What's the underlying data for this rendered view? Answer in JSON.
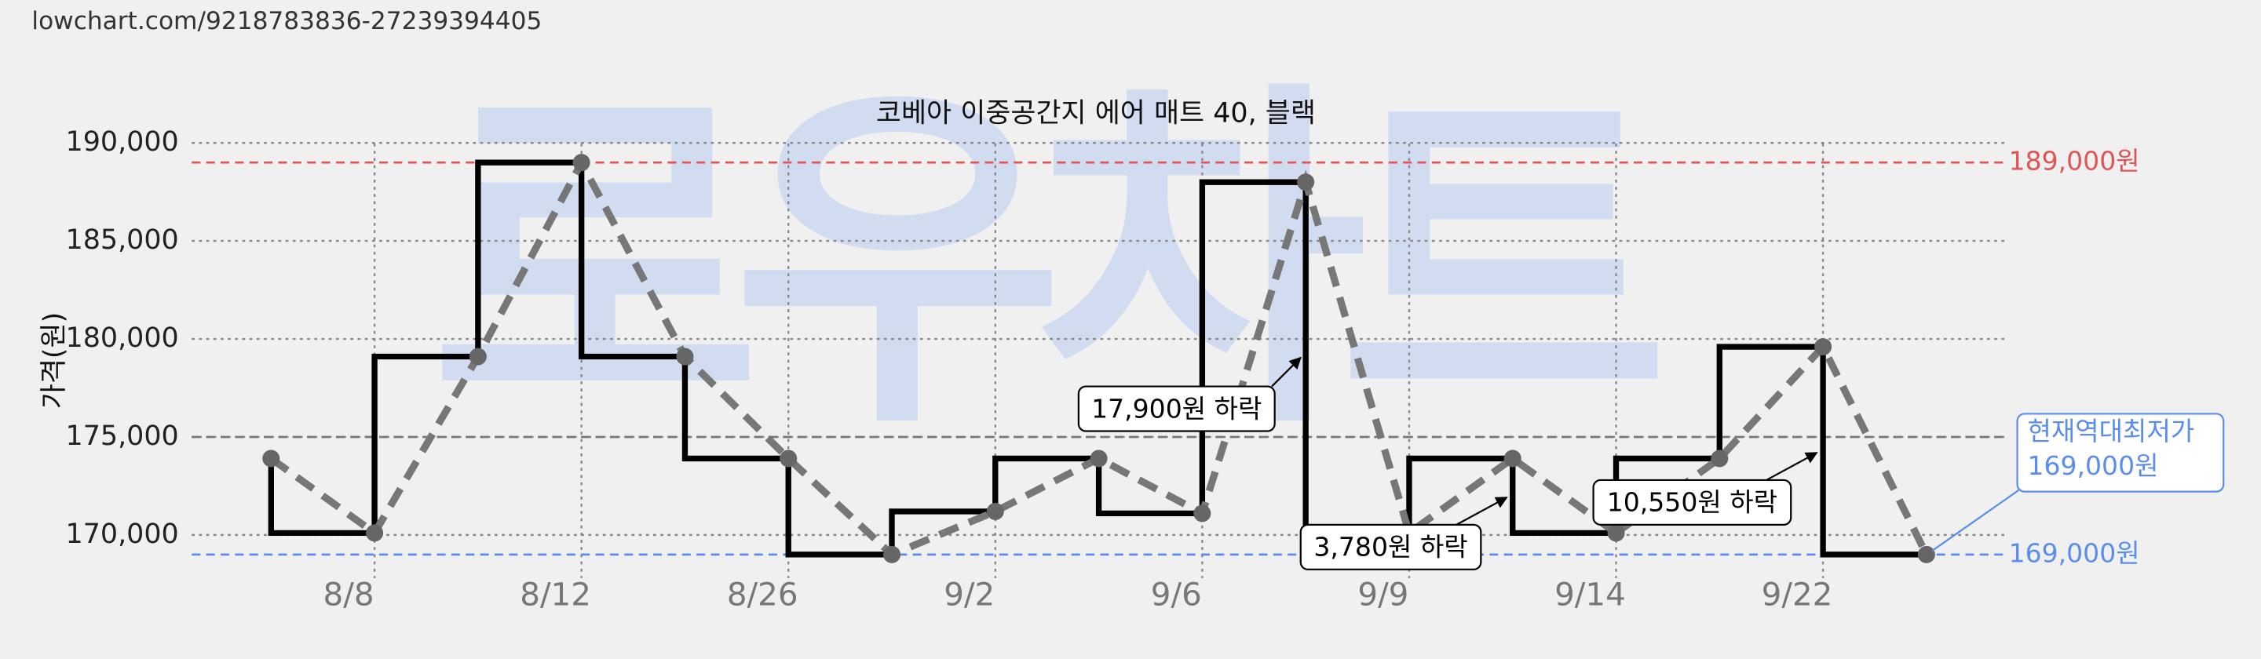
{
  "url": "lowchart.com/9218783836-27239394405",
  "watermark": "로우차트",
  "chart_data": {
    "type": "line",
    "title": "코베아 이중공간지 에어 매트 40, 블랙",
    "y_label": "가격(원)",
    "categories": [
      null,
      "8/8",
      null,
      "8/12",
      null,
      "8/26",
      null,
      "9/2",
      null,
      "9/6",
      null,
      "9/9",
      null,
      "9/14",
      null,
      "9/22",
      null
    ],
    "series": [
      {
        "color": "#777777",
        "values": [
          173900,
          170100,
          179100,
          189000,
          179100,
          173900,
          169000,
          171200,
          173900,
          171100,
          188000,
          170100,
          173900,
          170100,
          173900,
          179600,
          169000
        ]
      }
    ],
    "ylim": [
      167800,
      190700
    ],
    "yticks": [
      {
        "value": 170000,
        "label": "170,000"
      },
      {
        "value": 175000,
        "label": "175,000"
      },
      {
        "value": 180000,
        "label": "180,000"
      },
      {
        "value": 185000,
        "label": "185,000"
      },
      {
        "value": 190000,
        "label": "190,000"
      }
    ],
    "grid": true,
    "reference_lines": [
      {
        "value": 189000,
        "label": "189,000원",
        "color": "#e05555"
      },
      {
        "value": 175000,
        "color": "#777777"
      },
      {
        "value": 169000,
        "label": "169,000원",
        "color": "#5b8def"
      }
    ],
    "annotations": [
      {
        "text": "17,900원 하락"
      },
      {
        "text": "3,780원 하락"
      },
      {
        "text": "10,550원 하락"
      }
    ],
    "lowest_note": {
      "lines": [
        "현재역대최저가",
        "169,000원"
      ],
      "color": "#5b8def"
    }
  }
}
